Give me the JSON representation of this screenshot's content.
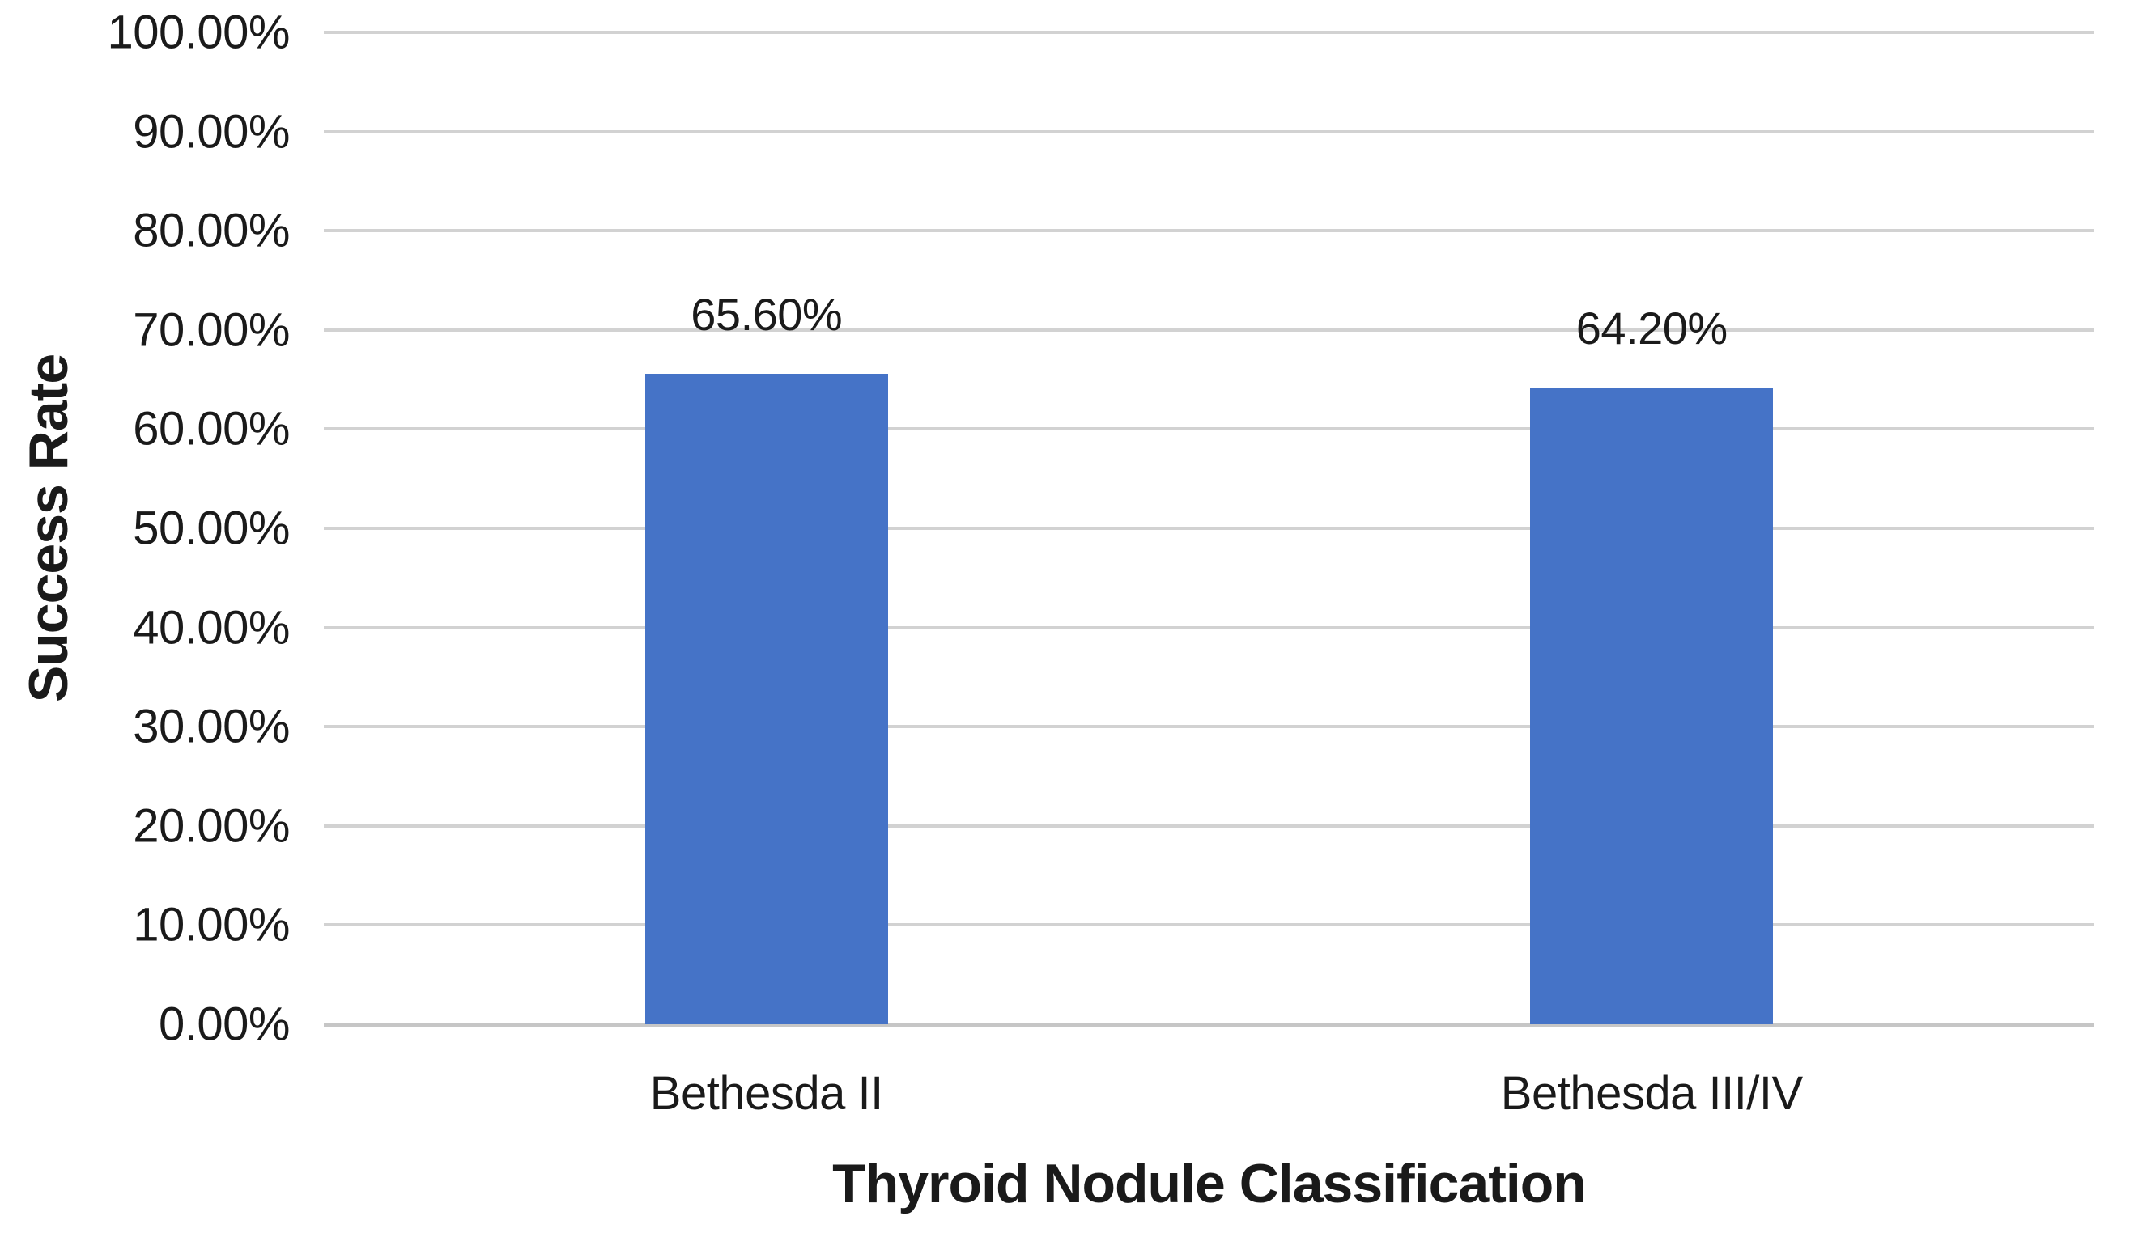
{
  "chart_data": {
    "type": "bar",
    "title": "",
    "xlabel": "Thyroid Nodule Classification",
    "ylabel": "Success Rate",
    "categories": [
      "Bethesda II",
      "Bethesda III/IV"
    ],
    "values": [
      65.6,
      64.2
    ],
    "data_labels": [
      "65.60%",
      "64.20%"
    ],
    "ylim": [
      0,
      100
    ],
    "y_tick_step": 10,
    "y_tick_labels": [
      "0.00%",
      "10.00%",
      "20.00%",
      "30.00%",
      "40.00%",
      "50.00%",
      "60.00%",
      "70.00%",
      "80.00%",
      "90.00%",
      "100.00%"
    ],
    "grid": true,
    "legend_position": "none",
    "bar_color": "#4573C7",
    "gridline_color": "#D2D2D2",
    "text_color": "#1A1A1A",
    "background_color": "#FFFFFF"
  }
}
